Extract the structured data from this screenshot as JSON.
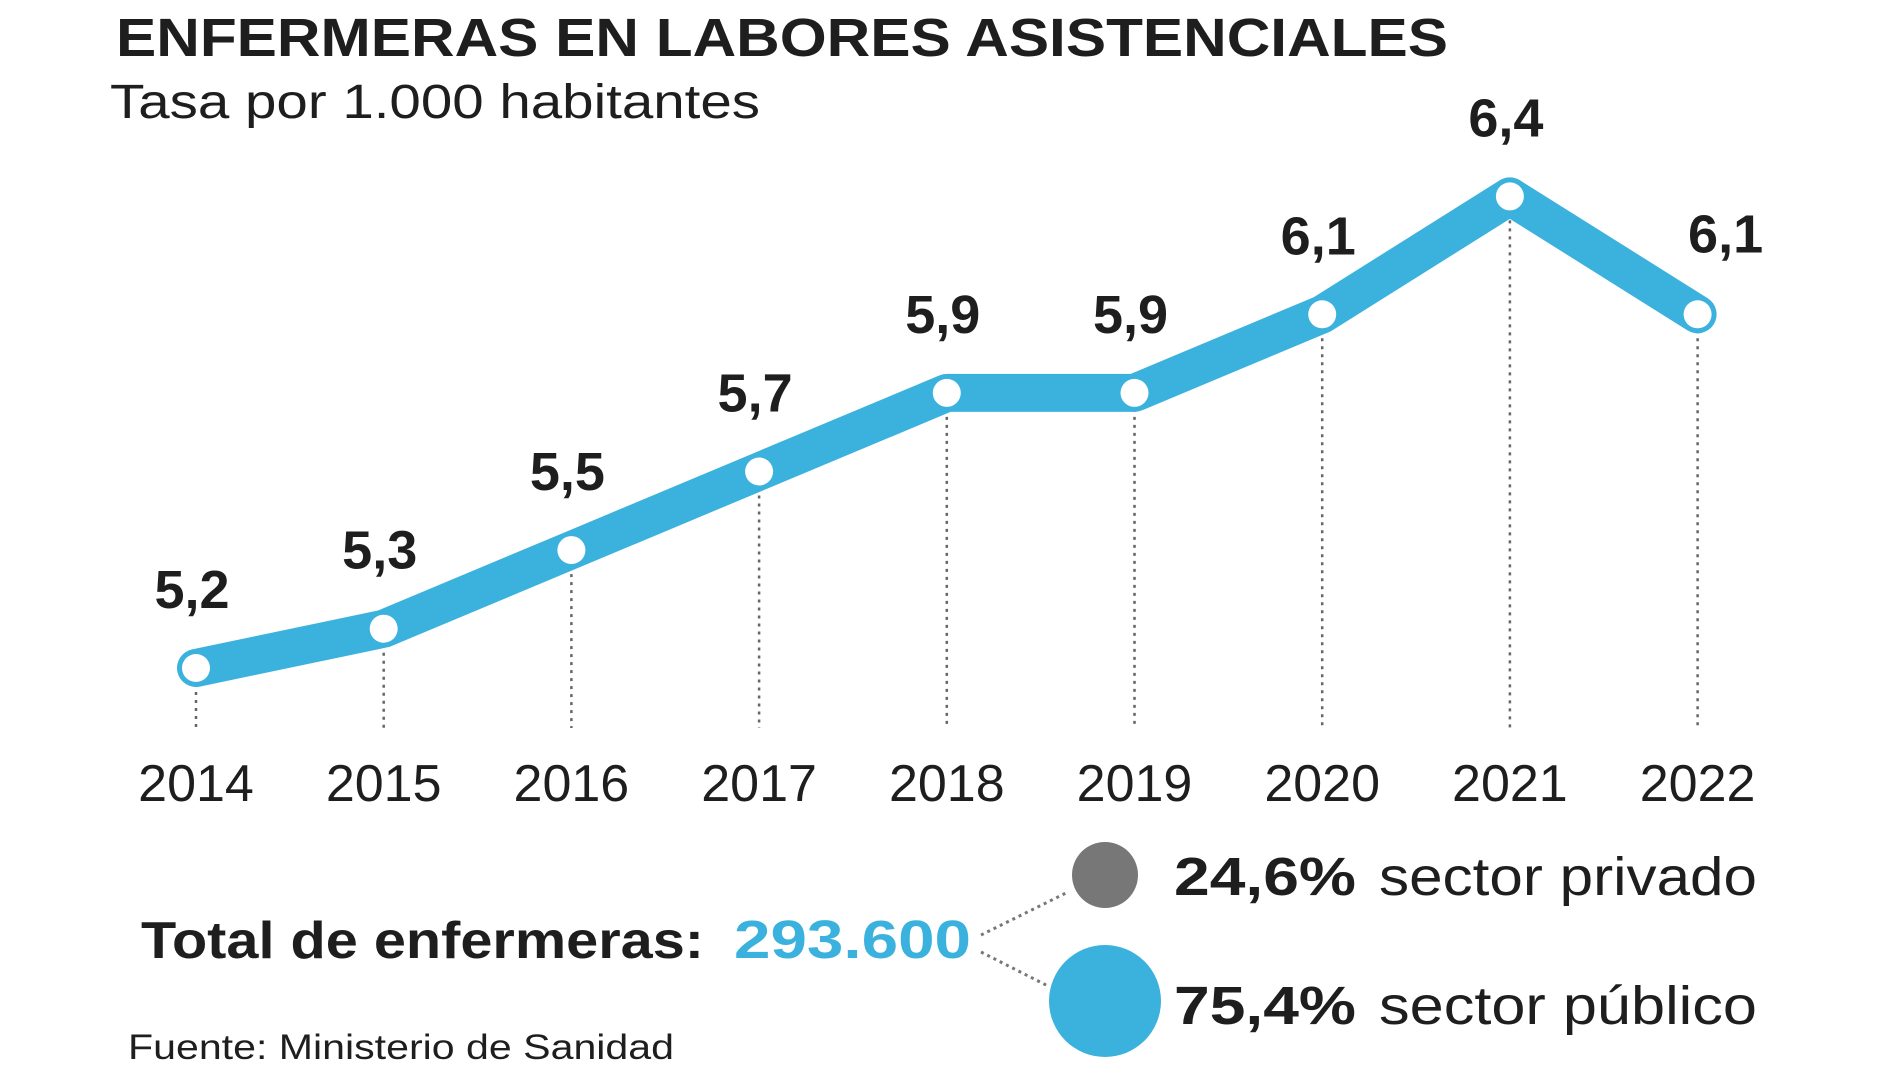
{
  "chart_data": {
    "type": "line",
    "title": "ENFERMERAS EN LABORES ASISTENCIALES",
    "subtitle": "Tasa por 1.000 habitantes",
    "categories": [
      "2014",
      "2015",
      "2016",
      "2017",
      "2018",
      "2019",
      "2020",
      "2021",
      "2022"
    ],
    "values": [
      5.2,
      5.3,
      5.5,
      5.7,
      5.9,
      5.9,
      6.1,
      6.4,
      6.1
    ],
    "data_labels": [
      "5,2",
      "5,3",
      "5,5",
      "5,7",
      "5,9",
      "5,9",
      "6,1",
      "6,4",
      "6,1"
    ],
    "grid": false,
    "line_color": "#3bb2dd"
  },
  "summary": {
    "total_label": "Total de enfermeras:",
    "total_value": "293.600",
    "segments": [
      {
        "pct": "24,6%",
        "label": "sector privado",
        "value": 24.6,
        "color": "#777777"
      },
      {
        "pct": "75,4%",
        "label": "sector público",
        "value": 75.4,
        "color": "#3bb2dd"
      }
    ]
  },
  "source": "Fuente: Ministerio de Sanidad"
}
